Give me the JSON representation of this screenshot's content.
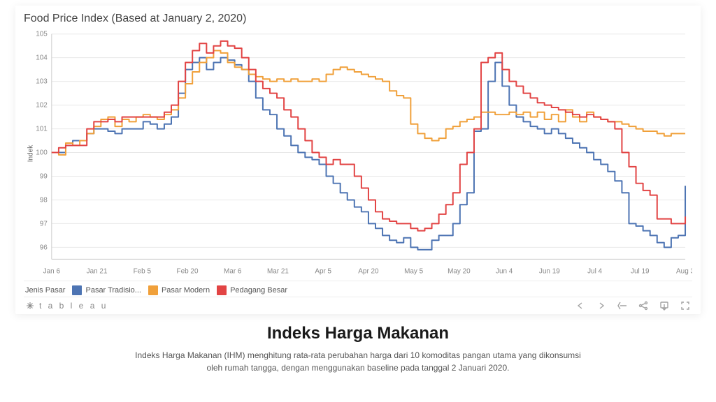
{
  "chart": {
    "type": "line",
    "title": "Food Price Index (Based at January 2, 2020)",
    "title_fontsize": 16,
    "title_color": "#444444",
    "ylabel": "Indek",
    "ylabel_fontsize": 10,
    "background_color": "#ffffff",
    "grid_color": "#e8e8e8",
    "axis_color": "#cccccc",
    "tick_label_color": "#888888",
    "tick_fontsize": 10,
    "ylim": [
      95.5,
      105
    ],
    "yticks": [
      96,
      97,
      98,
      99,
      100,
      101,
      102,
      103,
      104,
      105
    ],
    "xticks": [
      "Jan 6",
      "Jan 21",
      "Feb 5",
      "Feb 20",
      "Mar 6",
      "Mar 21",
      "Apr 5",
      "Apr 20",
      "May 5",
      "May 20",
      "Jun 4",
      "Jun 19",
      "Jul 4",
      "Jul 19",
      "Aug 3"
    ],
    "line_width": 2,
    "series": [
      {
        "name": "Pasar Tradisio...",
        "color": "#4d74b3",
        "values": [
          100,
          100,
          100.3,
          100.5,
          100.5,
          100.8,
          101,
          101,
          100.9,
          100.8,
          101,
          101,
          101,
          101.3,
          101.2,
          101,
          101.2,
          101.5,
          102.5,
          103.5,
          103.8,
          104,
          103.5,
          103.8,
          104,
          103.9,
          103.7,
          103.5,
          103,
          102.3,
          101.8,
          101.6,
          101,
          100.7,
          100.3,
          100,
          99.8,
          99.7,
          99.5,
          99,
          98.7,
          98.3,
          98,
          97.7,
          97.5,
          97,
          96.8,
          96.5,
          96.3,
          96.2,
          96.4,
          96,
          95.9,
          95.9,
          96.3,
          96.5,
          96.5,
          97,
          97.8,
          98.3,
          100.9,
          101,
          103,
          103.8,
          102.8,
          102,
          101.5,
          101.3,
          101.1,
          101,
          100.8,
          101,
          100.8,
          100.6,
          100.4,
          100.2,
          100,
          99.7,
          99.5,
          99.2,
          98.8,
          98.3,
          97.0,
          96.9,
          96.7,
          96.5,
          96.2,
          96.0,
          96.4,
          96.5,
          98.6
        ]
      },
      {
        "name": "Pasar Modern",
        "color": "#f0a03a",
        "values": [
          100,
          99.9,
          100.4,
          100.3,
          100.5,
          100.8,
          101.1,
          101.4,
          101.5,
          101.1,
          101.4,
          101.3,
          101.5,
          101.6,
          101.5,
          101.4,
          101.6,
          101.8,
          102.3,
          102.9,
          103.4,
          103.8,
          104,
          104.3,
          104.2,
          103.8,
          103.6,
          103.5,
          103.3,
          103.2,
          103.1,
          103,
          103.1,
          103,
          103.1,
          103,
          103,
          103.1,
          103,
          103.3,
          103.5,
          103.6,
          103.5,
          103.4,
          103.3,
          103.2,
          103.1,
          103,
          102.6,
          102.4,
          102.3,
          101.2,
          100.8,
          100.6,
          100.5,
          100.6,
          101,
          101.1,
          101.3,
          101.4,
          101.5,
          101.7,
          101.7,
          101.6,
          101.6,
          101.7,
          101.6,
          101.7,
          101.5,
          101.7,
          101.4,
          101.6,
          101.3,
          101.8,
          101.5,
          101.3,
          101.7,
          101.5,
          101.4,
          101.3,
          101.3,
          101.2,
          101.1,
          101.0,
          100.9,
          100.9,
          100.8,
          100.7,
          100.8,
          100.8,
          100.8
        ]
      },
      {
        "name": "Pedagang Besar",
        "color": "#e24444",
        "values": [
          100,
          100.2,
          100.3,
          100.3,
          100.3,
          101,
          101.3,
          101.3,
          101.4,
          101.3,
          101.5,
          101.5,
          101.5,
          101.5,
          101.5,
          101.5,
          101.7,
          102,
          103,
          103.8,
          104.3,
          104.6,
          104.2,
          104.5,
          104.7,
          104.5,
          104.4,
          104,
          103.5,
          103,
          102.7,
          102.5,
          102.3,
          101.8,
          101.5,
          101,
          100.5,
          100,
          99.8,
          99.5,
          99.7,
          99.5,
          99.5,
          99,
          98.5,
          98,
          97.5,
          97.2,
          97.1,
          97,
          97,
          96.8,
          96.7,
          96.8,
          97,
          97.4,
          97.8,
          98.3,
          99.5,
          100,
          101,
          103.8,
          104,
          104.2,
          103.5,
          103,
          102.8,
          102.5,
          102.3,
          102.1,
          102,
          101.9,
          101.8,
          101.7,
          101.6,
          101.5,
          101.6,
          101.5,
          101.4,
          101.3,
          101,
          100,
          99.4,
          98.7,
          98.4,
          98.2,
          97.2,
          97.2,
          97.0,
          97.0,
          97.3
        ]
      }
    ],
    "legend_title": "Jenis Pasar",
    "legend_fontsize": 11
  },
  "toolbar": {
    "brand": "t a b l e a u",
    "icons": {
      "back": "arrow-left",
      "forward": "arrow-right",
      "reset": "reset",
      "share": "share",
      "download": "download",
      "fullscreen": "fullscreen"
    }
  },
  "headline": "Indeks Harga Makanan",
  "description": "Indeks Harga Makanan (IHM) menghitung rata-rata perubahan harga dari 10 komoditas pangan utama yang dikonsumsi oleh rumah tangga, dengan menggunakan baseline pada tanggal 2 Januari 2020."
}
